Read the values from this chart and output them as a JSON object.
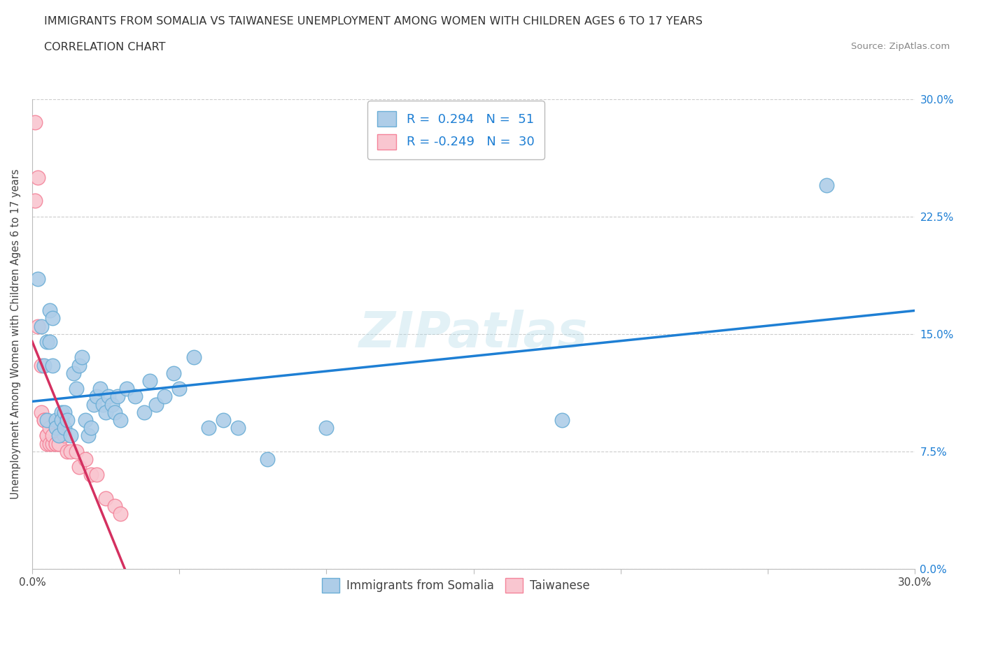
{
  "title": "IMMIGRANTS FROM SOMALIA VS TAIWANESE UNEMPLOYMENT AMONG WOMEN WITH CHILDREN AGES 6 TO 17 YEARS",
  "subtitle": "CORRELATION CHART",
  "source": "Source: ZipAtlas.com",
  "ylabel": "Unemployment Among Women with Children Ages 6 to 17 years",
  "xlim": [
    0.0,
    0.3
  ],
  "ylim": [
    0.0,
    0.3
  ],
  "ytick_labels": [
    "0.0%",
    "7.5%",
    "15.0%",
    "22.5%",
    "30.0%"
  ],
  "ytick_positions": [
    0.0,
    0.075,
    0.15,
    0.225,
    0.3
  ],
  "xtick_labels_show": [
    "0.0%",
    "30.0%"
  ],
  "xtick_positions_show": [
    0.0,
    0.3
  ],
  "xtick_positions_all": [
    0.0,
    0.05,
    0.1,
    0.15,
    0.2,
    0.25,
    0.3
  ],
  "watermark": "ZIPatlas",
  "somalia_marker_face": "#aecde8",
  "somalia_marker_edge": "#6baed6",
  "taiwanese_marker_face": "#f9c6d0",
  "taiwanese_marker_edge": "#f4849a",
  "regression_somalia_color": "#1e7fd4",
  "regression_taiwanese_color": "#d43060",
  "R_somalia": 0.294,
  "N_somalia": 51,
  "R_taiwanese": -0.249,
  "N_taiwanese": 30,
  "somalia_scatter_x": [
    0.002,
    0.003,
    0.004,
    0.005,
    0.005,
    0.006,
    0.006,
    0.007,
    0.007,
    0.008,
    0.008,
    0.009,
    0.01,
    0.01,
    0.011,
    0.011,
    0.012,
    0.013,
    0.014,
    0.015,
    0.016,
    0.017,
    0.018,
    0.019,
    0.02,
    0.021,
    0.022,
    0.023,
    0.024,
    0.025,
    0.026,
    0.027,
    0.028,
    0.029,
    0.03,
    0.032,
    0.035,
    0.038,
    0.04,
    0.042,
    0.045,
    0.048,
    0.05,
    0.055,
    0.06,
    0.065,
    0.07,
    0.08,
    0.1,
    0.18,
    0.27
  ],
  "somalia_scatter_y": [
    0.185,
    0.155,
    0.13,
    0.145,
    0.095,
    0.145,
    0.165,
    0.16,
    0.13,
    0.095,
    0.09,
    0.085,
    0.1,
    0.095,
    0.09,
    0.1,
    0.095,
    0.085,
    0.125,
    0.115,
    0.13,
    0.135,
    0.095,
    0.085,
    0.09,
    0.105,
    0.11,
    0.115,
    0.105,
    0.1,
    0.11,
    0.105,
    0.1,
    0.11,
    0.095,
    0.115,
    0.11,
    0.1,
    0.12,
    0.105,
    0.11,
    0.125,
    0.115,
    0.135,
    0.09,
    0.095,
    0.09,
    0.07,
    0.09,
    0.095,
    0.245
  ],
  "taiwanese_scatter_x": [
    0.001,
    0.001,
    0.002,
    0.002,
    0.003,
    0.003,
    0.004,
    0.004,
    0.005,
    0.005,
    0.005,
    0.006,
    0.006,
    0.007,
    0.007,
    0.008,
    0.008,
    0.009,
    0.01,
    0.011,
    0.012,
    0.013,
    0.015,
    0.016,
    0.018,
    0.02,
    0.022,
    0.025,
    0.028,
    0.03
  ],
  "taiwanese_scatter_y": [
    0.285,
    0.235,
    0.25,
    0.155,
    0.13,
    0.1,
    0.095,
    0.095,
    0.085,
    0.08,
    0.085,
    0.08,
    0.09,
    0.08,
    0.085,
    0.08,
    0.08,
    0.08,
    0.09,
    0.085,
    0.075,
    0.075,
    0.075,
    0.065,
    0.07,
    0.06,
    0.06,
    0.045,
    0.04,
    0.035
  ]
}
